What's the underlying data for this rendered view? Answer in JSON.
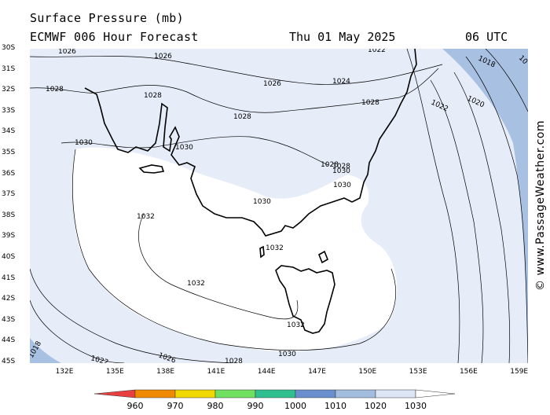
{
  "header": {
    "title": "Surface Pressure (mb)",
    "model": "ECMWF 006 Hour Forecast",
    "date": "Thu 01 May 2025",
    "time": "06 UTC"
  },
  "watermark": "© www.PassageWeather.com",
  "map": {
    "latitude_labels": [
      "30S",
      "31S",
      "32S",
      "33S",
      "34S",
      "35S",
      "36S",
      "37S",
      "38S",
      "39S",
      "40S",
      "41S",
      "42S",
      "43S",
      "44S",
      "45S"
    ],
    "longitude_labels": [
      "132E",
      "135E",
      "138E",
      "141E",
      "144E",
      "147E",
      "150E",
      "153E",
      "156E",
      "159E"
    ],
    "isobar_labels": [
      {
        "text": "1026"
      },
      {
        "text": "1026"
      },
      {
        "text": "1022"
      },
      {
        "text": "1028"
      },
      {
        "text": "1028"
      },
      {
        "text": "1026"
      },
      {
        "text": "1024"
      },
      {
        "text": "1028"
      },
      {
        "text": "1028"
      },
      {
        "text": "1030"
      },
      {
        "text": "1030"
      },
      {
        "text": "1028"
      },
      {
        "text": "1030"
      },
      {
        "text": "1030"
      },
      {
        "text": "1030"
      },
      {
        "text": "1032"
      },
      {
        "text": "1032"
      },
      {
        "text": "1032"
      },
      {
        "text": "1032"
      },
      {
        "text": "1030"
      },
      {
        "text": "1026"
      },
      {
        "text": "1028"
      },
      {
        "text": "1022"
      },
      {
        "text": "1018"
      },
      {
        "text": "1022"
      },
      {
        "text": "1020"
      },
      {
        "text": "1018"
      },
      {
        "text": "10"
      },
      {
        "text": "1028"
      }
    ]
  },
  "legend": {
    "units": "mb",
    "ticks": [
      "960",
      "970",
      "980",
      "990",
      "1000",
      "1010",
      "1020",
      "1030"
    ],
    "colors": [
      "#e84040",
      "#f08a00",
      "#f0d800",
      "#70e060",
      "#30c090",
      "#6a8fcf",
      "#a3bde0",
      "#dce6f4",
      "#ffffff"
    ]
  },
  "colors": {
    "high_fill": "#ffffff",
    "mid_fill": "#e6ecf8",
    "low_fill": "#a8c1e2",
    "coast": "#000000",
    "isobar": "#000000"
  }
}
